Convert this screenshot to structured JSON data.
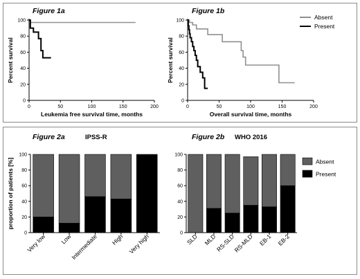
{
  "chart_data": [
    {
      "type": "line",
      "figure_label": "Figure 1a",
      "xlabel": "Leukemia free survival time, months",
      "ylabel": "Percent survival",
      "xlim": [
        0,
        200
      ],
      "ylim": [
        0,
        100
      ],
      "xticks": [
        0,
        50,
        100,
        150,
        200
      ],
      "yticks": [
        0,
        20,
        40,
        60,
        80,
        100
      ],
      "series": [
        {
          "name": "Absent",
          "color": "#909090",
          "x": [
            0,
            2,
            2,
            170
          ],
          "y": [
            100,
            100,
            97,
            97
          ]
        },
        {
          "name": "Present",
          "color": "#000000",
          "x": [
            0,
            2,
            2,
            7,
            7,
            15,
            15,
            19,
            19,
            22,
            22,
            35
          ],
          "y": [
            100,
            100,
            90,
            90,
            85,
            85,
            77,
            77,
            62,
            62,
            53,
            53
          ]
        }
      ]
    },
    {
      "type": "line",
      "figure_label": "Figure 1b",
      "xlabel": "Overall survival time, months",
      "ylabel": "Percent survival",
      "xlim": [
        0,
        200
      ],
      "ylim": [
        0,
        100
      ],
      "xticks": [
        0,
        50,
        100,
        150,
        200
      ],
      "yticks": [
        0,
        20,
        40,
        60,
        80,
        100
      ],
      "legend": {
        "position": "top-right"
      },
      "series": [
        {
          "name": "Absent",
          "color": "#909090",
          "x": [
            0,
            3,
            3,
            8,
            8,
            14,
            14,
            32,
            32,
            55,
            55,
            85,
            85,
            88,
            88,
            92,
            92,
            145,
            145,
            170
          ],
          "y": [
            100,
            100,
            97,
            97,
            94,
            94,
            89,
            89,
            82,
            82,
            73,
            73,
            62,
            62,
            54,
            54,
            44,
            44,
            22,
            22
          ]
        },
        {
          "name": "Present",
          "color": "#000000",
          "x": [
            0,
            1,
            1,
            2,
            2,
            3,
            3,
            4,
            4,
            6,
            6,
            8,
            8,
            10,
            10,
            12,
            12,
            14,
            14,
            16,
            16,
            20,
            20,
            24,
            24,
            27,
            27,
            32
          ],
          "y": [
            100,
            100,
            93,
            93,
            88,
            88,
            83,
            83,
            78,
            78,
            73,
            73,
            67,
            67,
            62,
            62,
            56,
            56,
            50,
            50,
            42,
            42,
            35,
            35,
            28,
            28,
            15,
            15
          ]
        }
      ]
    },
    {
      "type": "bar",
      "figure_label": "Figure 2a",
      "title": "IPSS-R",
      "ylabel": "proportion of patients [%]",
      "ylim": [
        0,
        100
      ],
      "yticks": [
        0,
        20,
        40,
        60,
        80,
        100
      ],
      "categories": [
        "Very low",
        "Low",
        "Intermediate",
        "High",
        "Very high"
      ],
      "series": [
        {
          "name": "Present",
          "color": "#000000",
          "values": [
            20,
            12,
            46,
            43,
            100
          ]
        },
        {
          "name": "Absent",
          "color": "#5f5f5f",
          "values": [
            80,
            88,
            54,
            57,
            0
          ]
        }
      ]
    },
    {
      "type": "bar",
      "figure_label": "Figure 2b",
      "title": "WHO 2016",
      "ylim": [
        0,
        100
      ],
      "yticks": [
        0,
        20,
        40,
        60,
        80,
        100
      ],
      "legend": {
        "position": "right"
      },
      "categories": [
        "SLD",
        "MLD",
        "RS-SLD",
        "RS-MLD",
        "EB-1",
        "EB-2"
      ],
      "series": [
        {
          "name": "Present",
          "color": "#000000",
          "values": [
            0,
            31,
            25,
            35,
            33,
            60
          ]
        },
        {
          "name": "Absent",
          "color": "#5f5f5f",
          "values": [
            100,
            69,
            75,
            62,
            67,
            40
          ]
        }
      ]
    }
  ]
}
